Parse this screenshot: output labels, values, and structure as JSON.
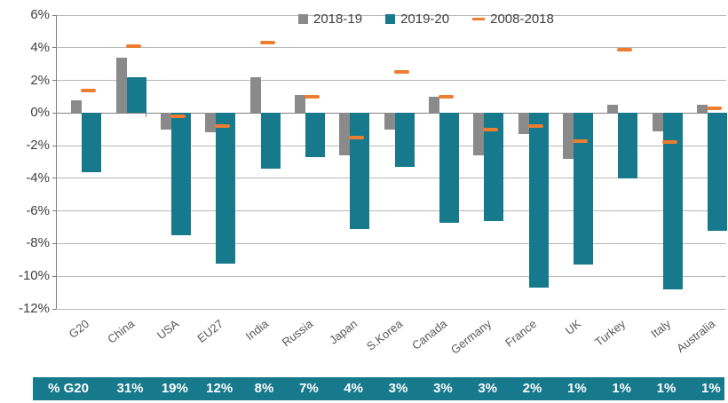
{
  "chart_data": {
    "type": "bar",
    "title": "",
    "xlabel": "",
    "ylabel": "",
    "ylim": [
      -12,
      6
    ],
    "ytick_step": 2,
    "ytick_labels": [
      "6%",
      "4%",
      "2%",
      "0%",
      "-2%",
      "-4%",
      "-6%",
      "-8%",
      "-10%",
      "-12%"
    ],
    "grid": true,
    "legend_position": "top",
    "categories": [
      "G20",
      "China",
      "USA",
      "EU27",
      "India",
      "Russia",
      "Japan",
      "S.Korea",
      "Canada",
      "Germany",
      "France",
      "UK",
      "Turkey",
      "Italy",
      "Australia"
    ],
    "series": [
      {
        "name": "2018-19",
        "type": "bar",
        "color": "#8a8a8a",
        "values": [
          0.8,
          3.4,
          -1.0,
          -1.2,
          2.2,
          1.1,
          -2.6,
          -1.0,
          1.0,
          -2.6,
          -1.3,
          -2.8,
          0.5,
          -1.1,
          0.5
        ]
      },
      {
        "name": "2019-20",
        "type": "bar",
        "color": "#17798c",
        "values": [
          -3.6,
          2.2,
          -7.5,
          -9.2,
          -3.4,
          -2.7,
          -7.1,
          -3.3,
          -6.7,
          -6.6,
          -10.7,
          -9.3,
          -4.0,
          -10.8,
          -7.2
        ]
      },
      {
        "name": "2008-2018",
        "type": "dash-marker",
        "color": "#ed7d31",
        "values": [
          1.4,
          4.1,
          -0.2,
          -0.8,
          4.3,
          1.0,
          -1.5,
          2.5,
          1.0,
          -1.0,
          -0.8,
          -1.7,
          3.9,
          -1.8,
          0.3
        ]
      }
    ]
  },
  "g20_share": {
    "label": "% G20",
    "values": [
      "31%",
      "19%",
      "12%",
      "8%",
      "7%",
      "4%",
      "3%",
      "3%",
      "3%",
      "2%",
      "1%",
      "1%",
      "1%",
      "1%"
    ]
  },
  "colors": {
    "bar_gray": "#8a8a8a",
    "bar_teal": "#17798c",
    "marker_orange": "#ed7d31",
    "banner_bg": "#17798c",
    "axis_text": "#404040",
    "xlabel_text": "#595959",
    "gridline": "#b8b8b8",
    "axis_line": "#7f7f7f"
  }
}
